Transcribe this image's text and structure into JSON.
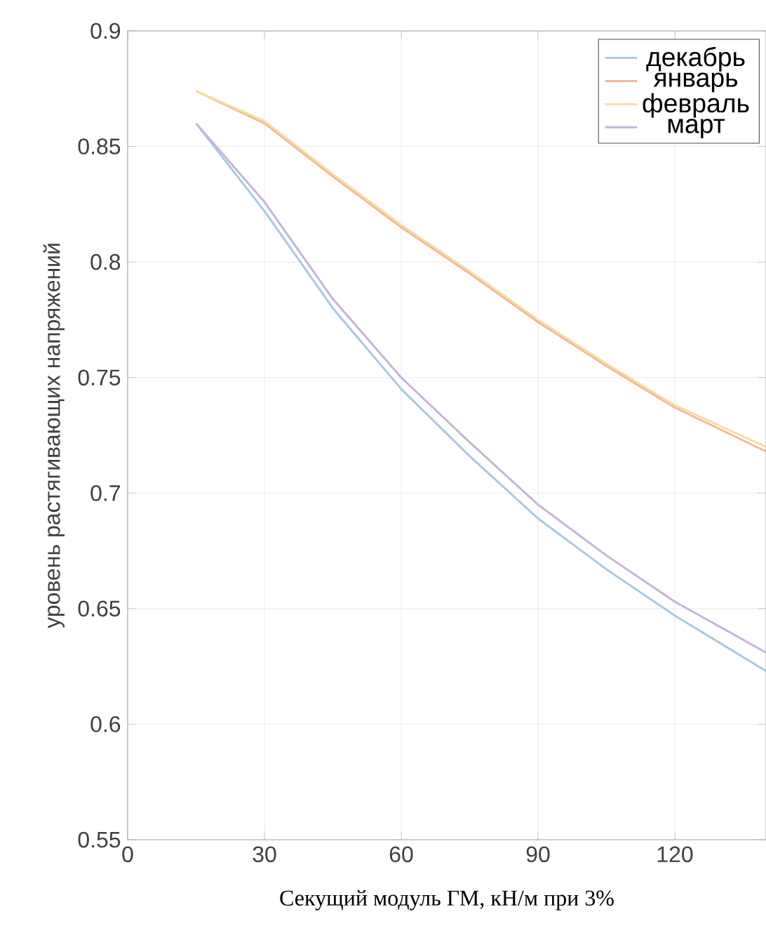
{
  "chart_data": {
    "type": "line",
    "xlabel": "Секущий модуль ГМ, кН/м при 3%",
    "ylabel": "уровень растягивающих напряжений",
    "x": [
      15,
      30,
      45,
      60,
      75,
      90,
      105,
      120,
      140
    ],
    "series": [
      {
        "name": "декабрь",
        "color": "#a9c8e0",
        "values": [
          0.86,
          0.822,
          0.78,
          0.745,
          0.716,
          0.689,
          0.667,
          0.647,
          0.623
        ]
      },
      {
        "name": "январь",
        "color": "#f0b89a",
        "values": [
          0.874,
          0.86,
          0.837,
          0.815,
          0.795,
          0.774,
          0.755,
          0.737,
          0.718
        ]
      },
      {
        "name": "февраль",
        "color": "#f8dca0",
        "values": [
          0.874,
          0.861,
          0.838,
          0.816,
          0.796,
          0.775,
          0.756,
          0.738,
          0.72
        ]
      },
      {
        "name": "март",
        "color": "#c4b4d8",
        "values": [
          0.86,
          0.826,
          0.784,
          0.75,
          0.722,
          0.695,
          0.673,
          0.653,
          0.631
        ]
      }
    ],
    "xlim": [
      0,
      140
    ],
    "ylim": [
      0.55,
      0.9
    ],
    "xticks": [
      0,
      30,
      60,
      90,
      120
    ],
    "yticks": [
      0.55,
      0.6,
      0.65,
      0.7,
      0.75,
      0.8,
      0.85,
      0.9
    ],
    "grid": true,
    "legend": "top right",
    "marker": "none",
    "line_style": "solid"
  }
}
